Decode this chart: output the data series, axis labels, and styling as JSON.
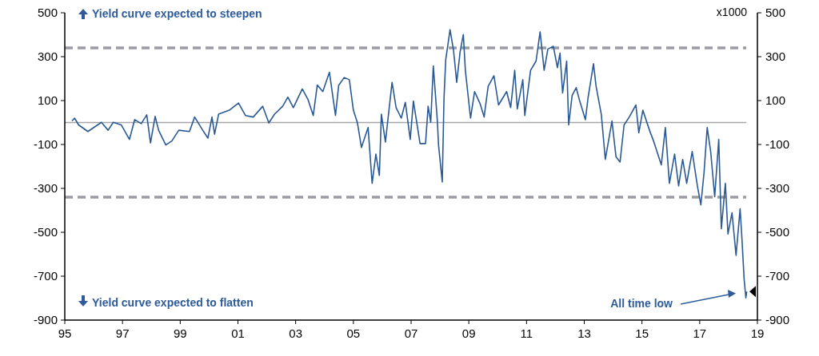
{
  "chart_data": {
    "type": "line",
    "x": [
      1995.25,
      1995.34,
      1995.48,
      1995.8,
      1996.27,
      1996.5,
      1996.68,
      1996.96,
      1997.24,
      1997.42,
      1997.65,
      1997.84,
      1997.97,
      1998.13,
      1998.25,
      1998.5,
      1998.71,
      1998.95,
      1999.32,
      1999.5,
      1999.78,
      1999.96,
      2000.1,
      2000.19,
      2000.33,
      2000.7,
      2001.02,
      2001.26,
      2001.53,
      2001.86,
      2002.07,
      2002.27,
      2002.55,
      2002.73,
      2002.92,
      2003.23,
      2003.43,
      2003.61,
      2003.75,
      2003.94,
      2004.17,
      2004.38,
      2004.49,
      2004.68,
      2004.86,
      2005.0,
      2005.14,
      2005.28,
      2005.51,
      2005.65,
      2005.78,
      2005.9,
      2005.97,
      2006.11,
      2006.34,
      2006.48,
      2006.66,
      2006.8,
      2006.97,
      2007.08,
      2007.31,
      2007.5,
      2007.59,
      2007.68,
      2007.77,
      2007.91,
      2007.95,
      2008.08,
      2008.14,
      2008.2,
      2008.35,
      2008.47,
      2008.58,
      2008.7,
      2008.81,
      2008.88,
      2009.06,
      2009.2,
      2009.39,
      2009.53,
      2009.67,
      2009.87,
      2010.03,
      2010.31,
      2010.45,
      2010.59,
      2010.68,
      2010.87,
      2010.94,
      2011.14,
      2011.33,
      2011.47,
      2011.61,
      2011.74,
      2011.93,
      2012.07,
      2012.16,
      2012.25,
      2012.39,
      2012.46,
      2012.58,
      2012.72,
      2012.83,
      2013.04,
      2013.13,
      2013.32,
      2013.41,
      2013.59,
      2013.73,
      2013.96,
      2014.1,
      2014.24,
      2014.38,
      2014.56,
      2014.79,
      2014.89,
      2015.03,
      2015.26,
      2015.4,
      2015.67,
      2015.81,
      2015.95,
      2016.13,
      2016.27,
      2016.41,
      2016.55,
      2016.74,
      2016.92,
      2017.04,
      2017.15,
      2017.26,
      2017.38,
      2017.52,
      2017.66,
      2017.75,
      2017.89,
      2017.98,
      2018.12,
      2018.26,
      2018.4,
      2018.46,
      2018.54,
      2018.6,
      2018.63
    ],
    "series": [
      {
        "color": "#2a5a95",
        "values": [
          7,
          20,
          -11,
          -41,
          1,
          -35,
          1,
          -11,
          -77,
          13,
          -5,
          35,
          -93,
          28,
          -35,
          -102,
          -84,
          -35,
          -41,
          25,
          -35,
          -71,
          25,
          -53,
          38,
          56,
          89,
          32,
          25,
          74,
          -2,
          38,
          74,
          116,
          68,
          153,
          104,
          32,
          171,
          141,
          229,
          32,
          169,
          205,
          195,
          56,
          -1,
          -114,
          -23,
          -277,
          -144,
          -241,
          38,
          -89,
          183,
          68,
          20,
          92,
          -77,
          98,
          -96,
          -96,
          74,
          1,
          258,
          7,
          -102,
          -271,
          111,
          286,
          423,
          329,
          183,
          323,
          401,
          238,
          20,
          141,
          86,
          25,
          165,
          213,
          80,
          141,
          68,
          238,
          62,
          195,
          32,
          238,
          280,
          413,
          238,
          335,
          347,
          250,
          316,
          135,
          280,
          -11,
          123,
          159,
          104,
          13,
          111,
          268,
          165,
          38,
          -168,
          7,
          -156,
          -180,
          -11,
          25,
          80,
          -47,
          56,
          -35,
          -84,
          -193,
          -23,
          -277,
          -144,
          -289,
          -168,
          -277,
          -132,
          -289,
          -375,
          -229,
          -23,
          -132,
          -338,
          -77,
          -484,
          -277,
          -508,
          -411,
          -605,
          -393,
          -520,
          -714,
          -799,
          -770
        ]
      }
    ],
    "xlim": [
      1995,
      2019
    ],
    "xticks": [
      {
        "value": 1995,
        "label": "95"
      },
      {
        "value": 1997,
        "label": "97"
      },
      {
        "value": 1999,
        "label": "99"
      },
      {
        "value": 2001,
        "label": "01"
      },
      {
        "value": 2003,
        "label": "03"
      },
      {
        "value": 2005,
        "label": "05"
      },
      {
        "value": 2007,
        "label": "07"
      },
      {
        "value": 2009,
        "label": "09"
      },
      {
        "value": 2011,
        "label": "11"
      },
      {
        "value": 2013,
        "label": "13"
      },
      {
        "value": 2015,
        "label": "15"
      },
      {
        "value": 2017,
        "label": "17"
      },
      {
        "value": 2019,
        "label": "19"
      }
    ],
    "ylim": [
      -900,
      500
    ],
    "yticks": [
      -900,
      -700,
      -500,
      -300,
      -100,
      100,
      300,
      500
    ],
    "y2lim": [
      -900,
      500
    ],
    "y2ticks": [
      -900,
      -700,
      -500,
      -300,
      -100,
      100,
      300,
      500
    ],
    "ref_lines": [
      {
        "axis": "y",
        "value": 0,
        "color": "#a6a6a6",
        "line_style": "solid"
      },
      {
        "axis": "y",
        "value": 340,
        "color": "#9b9ba3",
        "line_style": "dashed"
      },
      {
        "axis": "y",
        "value": -340,
        "color": "#9b9ba3",
        "line_style": "dashed"
      }
    ],
    "annotations": [
      "Yield curve expected to steepen",
      "Yield curve expected to flatten",
      "x1000",
      "All time low"
    ],
    "marker": "none",
    "line_style": "solid"
  }
}
